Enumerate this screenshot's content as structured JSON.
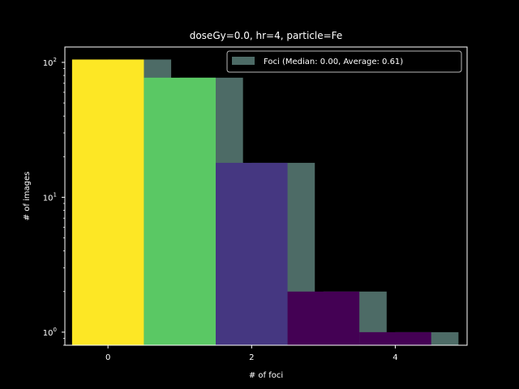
{
  "chart_data": {
    "type": "bar",
    "title": "doseGy=0.0, hr=4, particle=Fe",
    "xlabel": "# of foci",
    "ylabel": "# of images",
    "xlim": [
      -0.6,
      5.0
    ],
    "ylim": [
      0.8,
      130
    ],
    "yscale": "log",
    "grid": false,
    "legend_position": "top-right",
    "x_ticks": [
      {
        "value": 0,
        "label": "0"
      },
      {
        "value": 2,
        "label": "2"
      },
      {
        "value": 4,
        "label": "4"
      }
    ],
    "y_ticks": [
      {
        "value": 1,
        "base": "10",
        "exp": "0"
      },
      {
        "value": 10,
        "base": "10",
        "exp": "1"
      },
      {
        "value": 100,
        "base": "10",
        "exp": "2"
      }
    ],
    "series": [
      {
        "name": "Foci (Median: 0.00, Average: 0.61)",
        "color": "#4d6b66",
        "bars": [
          {
            "x0": 0,
            "x1": 0.88,
            "value": 105
          },
          {
            "x0": 1,
            "x1": 1.88,
            "value": 77
          },
          {
            "x0": 2,
            "x1": 2.88,
            "value": 18
          },
          {
            "x0": 3,
            "x1": 3.88,
            "value": 2
          },
          {
            "x0": 4,
            "x1": 4.88,
            "value": 1
          }
        ]
      }
    ],
    "colored_bars": [
      {
        "x0": -0.5,
        "x1": 0.5,
        "value": 105,
        "color": "#fde725"
      },
      {
        "x0": 0.5,
        "x1": 1.5,
        "value": 77,
        "color": "#5ac864"
      },
      {
        "x0": 1.5,
        "x1": 2.5,
        "value": 18,
        "color": "#453781"
      },
      {
        "x0": 2.5,
        "x1": 3.5,
        "value": 2,
        "color": "#440154"
      },
      {
        "x0": 3.5,
        "x1": 4.5,
        "value": 1,
        "color": "#440154"
      }
    ]
  }
}
